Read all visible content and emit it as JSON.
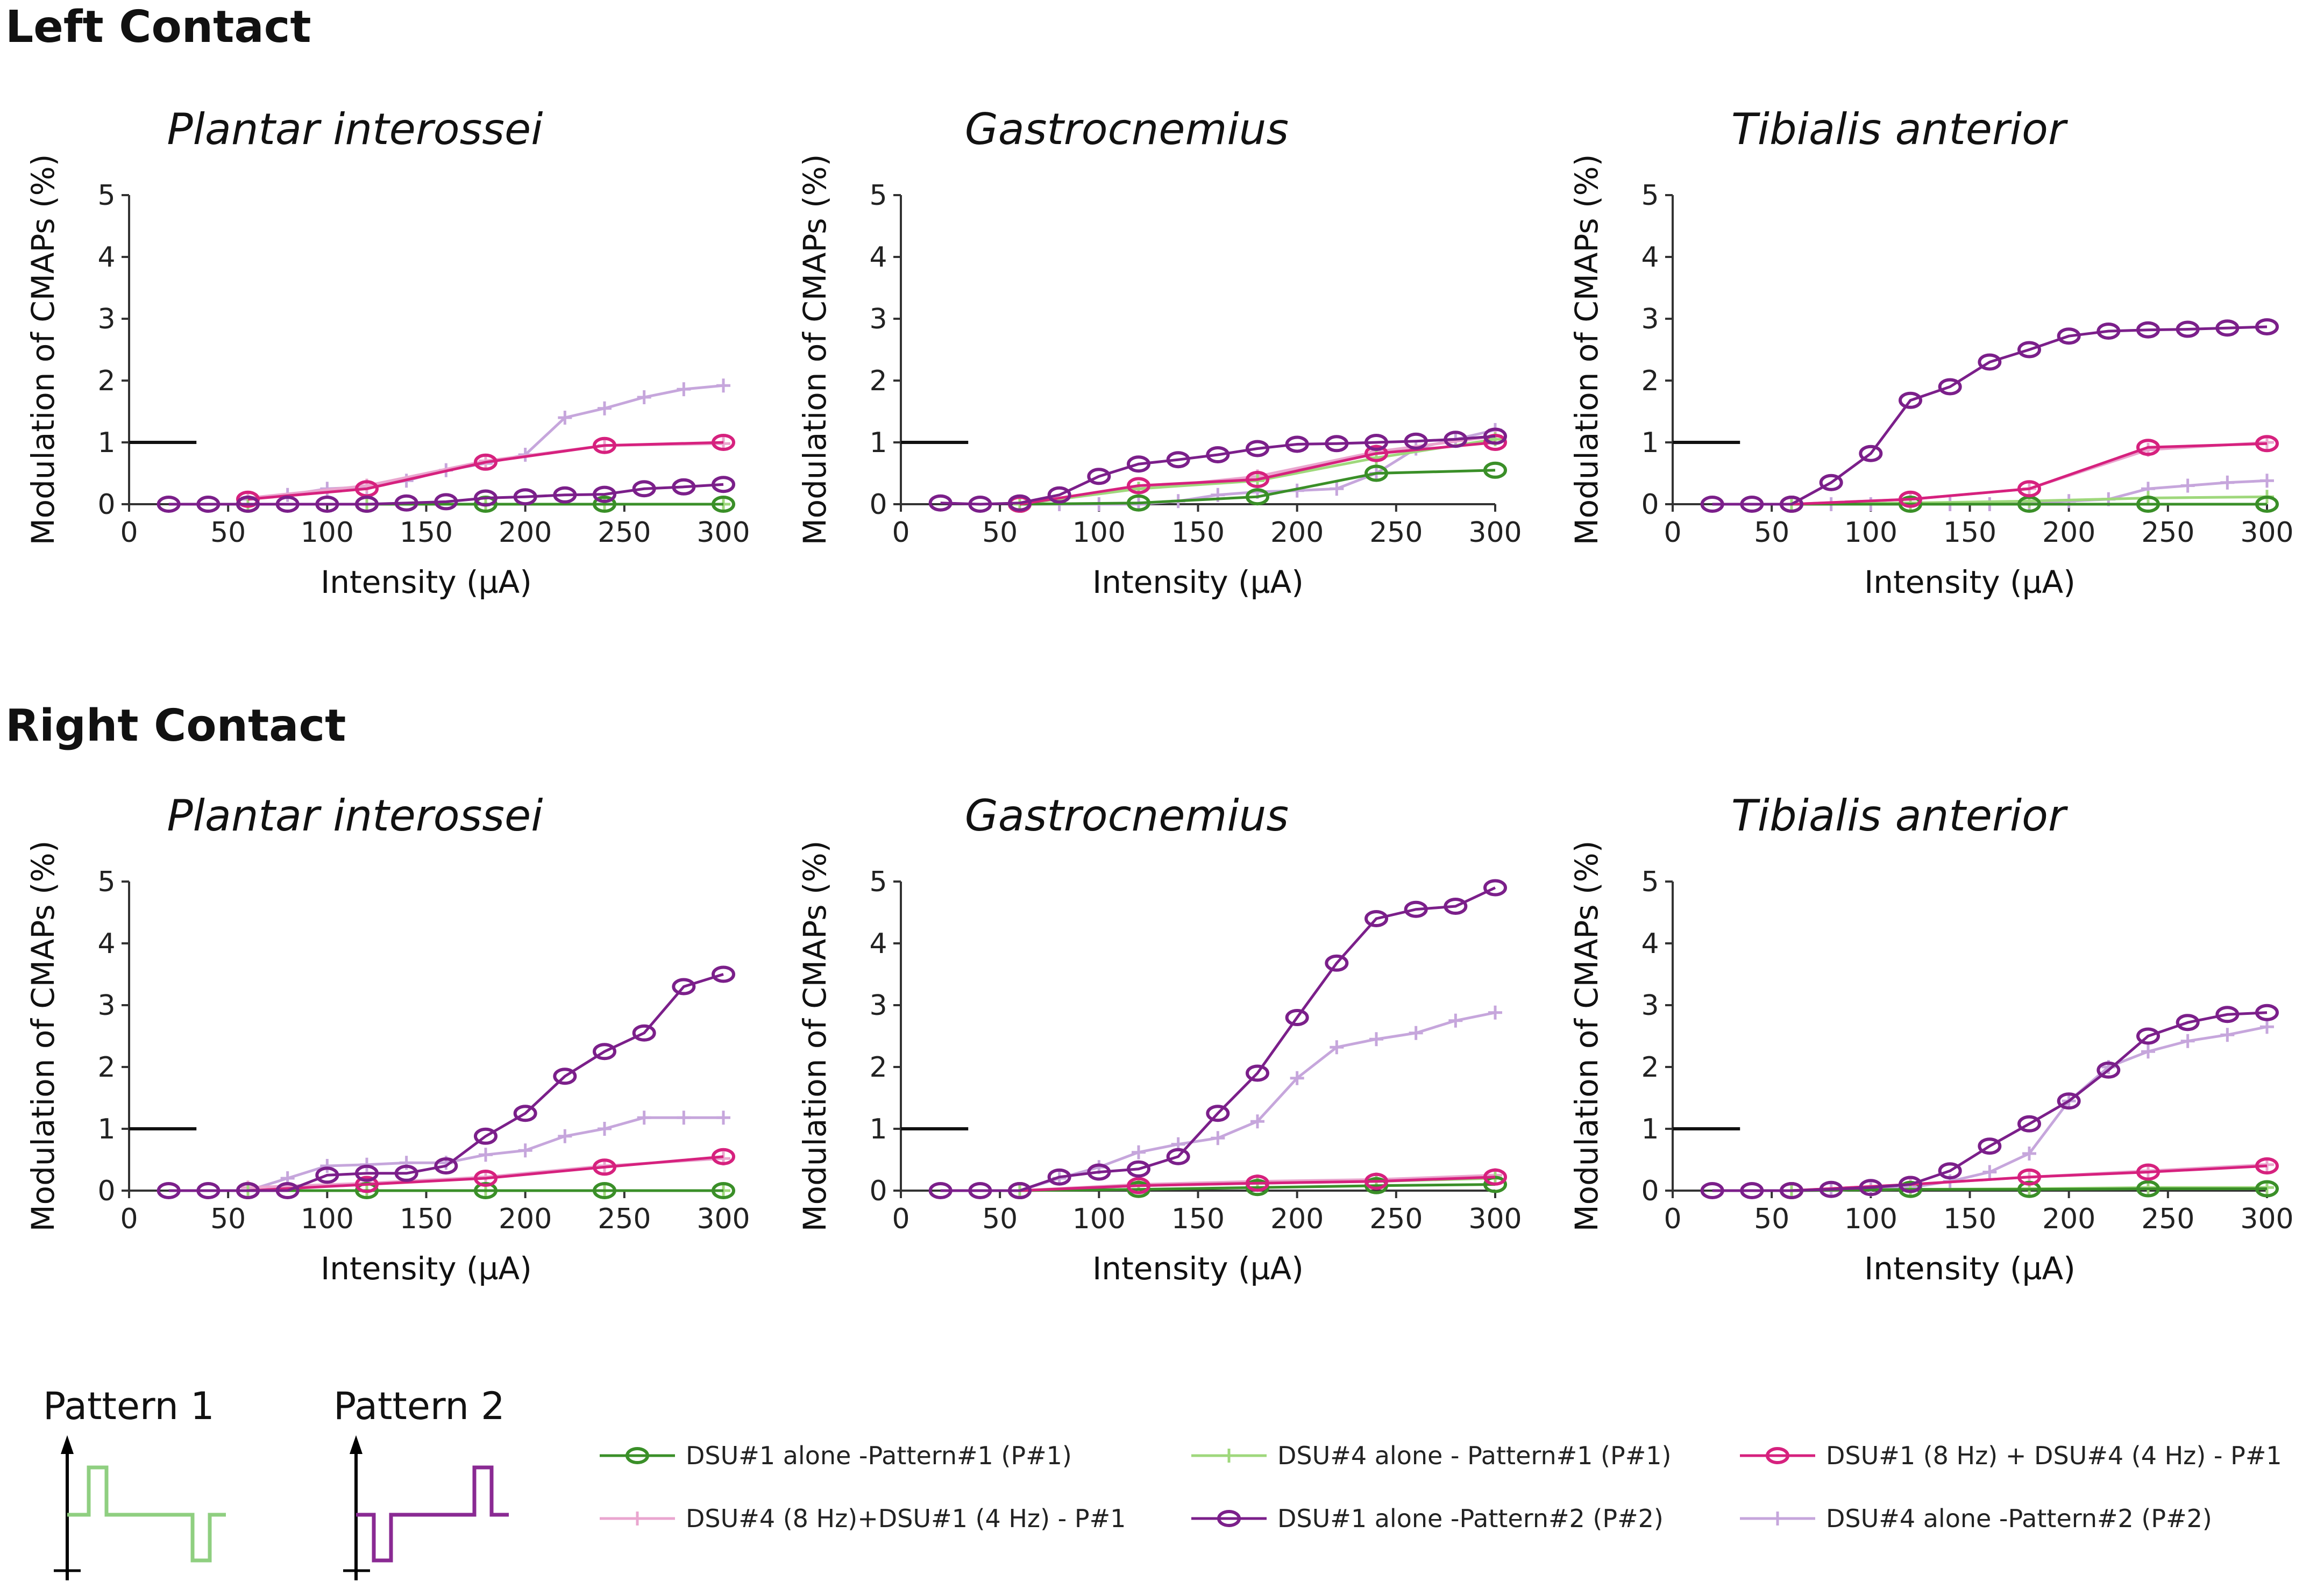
{
  "sections": [
    {
      "title": "Left Contact"
    },
    {
      "title": "Right Contact"
    }
  ],
  "series_styles": [
    {
      "name": "DSU#1 alone -Pattern#1 (P#1)",
      "color": "#3a8f28",
      "marker": "circle"
    },
    {
      "name": "DSU#4 alone - Pattern#1 (P#1)",
      "color": "#9fd87c",
      "marker": "plus"
    },
    {
      "name": "DSU#1 (8 Hz) + DSU#4 (4 Hz) - P#1",
      "color": "#d6217e",
      "marker": "circle"
    },
    {
      "name": "DSU#4 (8 Hz)+DSU#1 (4 Hz) - P#1",
      "color": "#eaa6cf",
      "marker": "plus"
    },
    {
      "name": "DSU#1 alone -Pattern#2 (P#2)",
      "color": "#7b1f8a",
      "marker": "circle"
    },
    {
      "name": "DSU#4 alone -Pattern#2 (P#2)",
      "color": "#c6a6dc",
      "marker": "plus"
    }
  ],
  "patterns": {
    "p1_label": "Pattern 1",
    "p2_label": "Pattern 2",
    "p1_color": "#8fcf80",
    "p2_color": "#8a2a93"
  },
  "chart_data": [
    {
      "type": "line",
      "section": "Left Contact",
      "title": "Plantar interossei",
      "xlabel": "Intensity (µA)",
      "ylabel": "Modulation of CMAPs (%)",
      "xlim": [
        0,
        300
      ],
      "ylim": [
        0,
        5
      ],
      "xticks": [
        0,
        50,
        100,
        150,
        200,
        250,
        300
      ],
      "yticks": [
        0,
        1,
        2,
        3,
        4,
        5
      ],
      "threshold": 1,
      "x": [
        20,
        40,
        60,
        80,
        100,
        120,
        140,
        160,
        180,
        200,
        220,
        240,
        260,
        280,
        300
      ],
      "series": [
        {
          "name": "DSU#1 alone -Pattern#1 (P#1)",
          "values": [
            null,
            null,
            0,
            null,
            null,
            0,
            null,
            null,
            0,
            null,
            null,
            0,
            null,
            null,
            0
          ]
        },
        {
          "name": "DSU#4 alone - Pattern#1 (P#1)",
          "values": [
            null,
            null,
            0,
            null,
            null,
            0,
            null,
            null,
            0,
            null,
            null,
            0,
            null,
            null,
            0
          ]
        },
        {
          "name": "DSU#1 (8 Hz) + DSU#4 (4 Hz) - P#1",
          "values": [
            null,
            null,
            0.08,
            null,
            null,
            0.25,
            null,
            null,
            0.68,
            null,
            null,
            0.95,
            null,
            null,
            1.0
          ]
        },
        {
          "name": "DSU#4 (8 Hz)+DSU#1 (4 Hz) - P#1",
          "values": [
            null,
            null,
            0.1,
            null,
            null,
            0.3,
            null,
            null,
            0.7,
            null,
            null,
            0.95,
            null,
            null,
            0.98
          ]
        },
        {
          "name": "DSU#1 alone -Pattern#2 (P#2)",
          "values": [
            0,
            0,
            0,
            0,
            0,
            0,
            0.02,
            0.04,
            0.1,
            0.12,
            0.15,
            0.16,
            0.25,
            0.28,
            0.32
          ]
        },
        {
          "name": "DSU#4 alone -Pattern#2 (P#2)",
          "values": [
            null,
            null,
            0.08,
            0.15,
            0.25,
            0.28,
            0.38,
            0.55,
            0.66,
            0.8,
            1.4,
            1.55,
            1.73,
            1.86,
            1.92
          ]
        }
      ]
    },
    {
      "type": "line",
      "section": "Left Contact",
      "title": "Gastrocnemius",
      "xlabel": "Intensity (µA)",
      "ylabel": "Modulation of CMAPs (%)",
      "xlim": [
        0,
        300
      ],
      "ylim": [
        0,
        5
      ],
      "xticks": [
        0,
        50,
        100,
        150,
        200,
        250,
        300
      ],
      "yticks": [
        0,
        1,
        2,
        3,
        4,
        5
      ],
      "threshold": 1,
      "x": [
        20,
        40,
        60,
        80,
        100,
        120,
        140,
        160,
        180,
        200,
        220,
        240,
        260,
        280,
        300
      ],
      "series": [
        {
          "name": "DSU#1 alone -Pattern#1 (P#1)",
          "values": [
            null,
            null,
            0,
            null,
            null,
            0.02,
            null,
            null,
            0.12,
            null,
            null,
            0.5,
            null,
            null,
            0.55
          ]
        },
        {
          "name": "DSU#4 alone - Pattern#1 (P#1)",
          "values": [
            null,
            null,
            0,
            null,
            null,
            0.25,
            null,
            null,
            0.38,
            null,
            null,
            0.75,
            null,
            null,
            1.05
          ]
        },
        {
          "name": "DSU#1 (8 Hz) + DSU#4 (4 Hz) - P#1",
          "values": [
            null,
            null,
            0,
            null,
            null,
            0.3,
            null,
            null,
            0.4,
            null,
            null,
            0.82,
            null,
            null,
            1.0
          ]
        },
        {
          "name": "DSU#4 (8 Hz)+DSU#1 (4 Hz) - P#1",
          "values": [
            null,
            null,
            0,
            null,
            null,
            0.25,
            null,
            null,
            0.45,
            null,
            null,
            0.85,
            null,
            null,
            1.1
          ]
        },
        {
          "name": "DSU#1 alone -Pattern#2 (P#2)",
          "values": [
            0.02,
            0,
            0.02,
            0.15,
            0.45,
            0.65,
            0.72,
            0.8,
            0.9,
            0.97,
            0.98,
            1.0,
            1.02,
            1.05,
            1.1
          ]
        },
        {
          "name": "DSU#4 alone -Pattern#2 (P#2)",
          "values": [
            null,
            null,
            0,
            0,
            0,
            0,
            0.05,
            0.15,
            0.2,
            0.22,
            0.25,
            0.5,
            0.9,
            1.05,
            1.2
          ]
        }
      ]
    },
    {
      "type": "line",
      "section": "Left Contact",
      "title": "Tibialis anterior",
      "xlabel": "Intensity (µA)",
      "ylabel": "Modulation of CMAPs (%)",
      "xlim": [
        0,
        300
      ],
      "ylim": [
        0,
        5
      ],
      "xticks": [
        0,
        50,
        100,
        150,
        200,
        250,
        300
      ],
      "yticks": [
        0,
        1,
        2,
        3,
        4,
        5
      ],
      "threshold": 1,
      "x": [
        20,
        40,
        60,
        80,
        100,
        120,
        140,
        160,
        180,
        200,
        220,
        240,
        260,
        280,
        300
      ],
      "series": [
        {
          "name": "DSU#1 alone -Pattern#1 (P#1)",
          "values": [
            null,
            null,
            0,
            null,
            null,
            0,
            null,
            null,
            0,
            null,
            null,
            0,
            null,
            null,
            0
          ]
        },
        {
          "name": "DSU#4 alone - Pattern#1 (P#1)",
          "values": [
            null,
            null,
            0,
            null,
            null,
            0.02,
            null,
            null,
            0.05,
            null,
            null,
            0.1,
            null,
            null,
            0.12
          ]
        },
        {
          "name": "DSU#1 (8 Hz) + DSU#4 (4 Hz) - P#1",
          "values": [
            null,
            null,
            0,
            null,
            null,
            0.08,
            null,
            null,
            0.25,
            null,
            null,
            0.92,
            null,
            null,
            0.98
          ]
        },
        {
          "name": "DSU#4 (8 Hz)+DSU#1 (4 Hz) - P#1",
          "values": [
            null,
            null,
            0,
            null,
            null,
            0.08,
            null,
            null,
            0.25,
            null,
            null,
            0.88,
            null,
            null,
            1.0
          ]
        },
        {
          "name": "DSU#1 alone -Pattern#2 (P#2)",
          "values": [
            0,
            0,
            0,
            0.35,
            0.82,
            1.68,
            1.9,
            2.3,
            2.5,
            2.72,
            2.8,
            2.82,
            2.83,
            2.85,
            2.87
          ]
        },
        {
          "name": "DSU#4 alone -Pattern#2 (P#2)",
          "values": [
            null,
            null,
            0,
            0,
            0,
            0,
            0,
            0,
            0.02,
            0.05,
            0.08,
            0.25,
            0.3,
            0.35,
            0.38
          ]
        }
      ]
    },
    {
      "type": "line",
      "section": "Right Contact",
      "title": "Plantar interossei",
      "xlabel": "Intensity (µA)",
      "ylabel": "Modulation of CMAPs (%)",
      "xlim": [
        0,
        300
      ],
      "ylim": [
        0,
        5
      ],
      "xticks": [
        0,
        50,
        100,
        150,
        200,
        250,
        300
      ],
      "yticks": [
        0,
        1,
        2,
        3,
        4,
        5
      ],
      "threshold": 1,
      "x": [
        20,
        40,
        60,
        80,
        100,
        120,
        140,
        160,
        180,
        200,
        220,
        240,
        260,
        280,
        300
      ],
      "series": [
        {
          "name": "DSU#1 alone -Pattern#1 (P#1)",
          "values": [
            null,
            null,
            0,
            null,
            null,
            0,
            null,
            null,
            0,
            null,
            null,
            0,
            null,
            null,
            0
          ]
        },
        {
          "name": "DSU#4 alone - Pattern#1 (P#1)",
          "values": [
            null,
            null,
            0,
            null,
            null,
            0,
            null,
            null,
            0,
            null,
            null,
            0,
            null,
            null,
            0
          ]
        },
        {
          "name": "DSU#1 (8 Hz) + DSU#4 (4 Hz) - P#1",
          "values": [
            null,
            null,
            0,
            null,
            null,
            0.1,
            null,
            null,
            0.2,
            null,
            null,
            0.38,
            null,
            null,
            0.55
          ]
        },
        {
          "name": "DSU#4 (8 Hz)+DSU#1 (4 Hz) - P#1",
          "values": [
            null,
            null,
            0.05,
            null,
            null,
            0.12,
            null,
            null,
            0.22,
            null,
            null,
            0.4,
            null,
            null,
            0.52
          ]
        },
        {
          "name": "DSU#1 alone -Pattern#2 (P#2)",
          "values": [
            0,
            0,
            0,
            0,
            0.25,
            0.28,
            0.28,
            0.4,
            0.88,
            1.25,
            1.85,
            2.25,
            2.55,
            3.3,
            3.5
          ]
        },
        {
          "name": "DSU#4 alone -Pattern#2 (P#2)",
          "values": [
            null,
            null,
            0,
            0.2,
            0.4,
            0.42,
            0.45,
            0.45,
            0.58,
            0.65,
            0.88,
            1.0,
            1.18,
            1.18,
            1.18
          ]
        }
      ]
    },
    {
      "type": "line",
      "section": "Right Contact",
      "title": "Gastrocnemius",
      "xlabel": "Intensity (µA)",
      "ylabel": "Modulation of CMAPs (%)",
      "xlim": [
        0,
        300
      ],
      "ylim": [
        0,
        5
      ],
      "xticks": [
        0,
        50,
        100,
        150,
        200,
        250,
        300
      ],
      "yticks": [
        0,
        1,
        2,
        3,
        4,
        5
      ],
      "threshold": 1,
      "x": [
        20,
        40,
        60,
        80,
        100,
        120,
        140,
        160,
        180,
        200,
        220,
        240,
        260,
        280,
        300
      ],
      "series": [
        {
          "name": "DSU#1 alone -Pattern#1 (P#1)",
          "values": [
            null,
            null,
            0,
            null,
            null,
            0.02,
            null,
            null,
            0.05,
            null,
            null,
            0.08,
            null,
            null,
            0.1
          ]
        },
        {
          "name": "DSU#4 alone - Pattern#1 (P#1)",
          "values": [
            null,
            null,
            0,
            null,
            null,
            0.08,
            null,
            null,
            0.12,
            null,
            null,
            0.15,
            null,
            null,
            0.2
          ]
        },
        {
          "name": "DSU#1 (8 Hz) + DSU#4 (4 Hz) - P#1",
          "values": [
            null,
            null,
            0,
            null,
            null,
            0.08,
            null,
            null,
            0.12,
            null,
            null,
            0.15,
            null,
            null,
            0.22
          ]
        },
        {
          "name": "DSU#4 (8 Hz)+DSU#1 (4 Hz) - P#1",
          "values": [
            null,
            null,
            0,
            null,
            null,
            0.1,
            null,
            null,
            0.15,
            null,
            null,
            0.18,
            null,
            null,
            0.25
          ]
        },
        {
          "name": "DSU#1 alone -Pattern#2 (P#2)",
          "values": [
            0,
            0,
            0,
            0.22,
            0.3,
            0.35,
            0.55,
            1.25,
            1.9,
            2.8,
            3.68,
            4.4,
            4.55,
            4.6,
            4.9
          ]
        },
        {
          "name": "DSU#4 alone -Pattern#2 (P#2)",
          "values": [
            null,
            null,
            0,
            0.2,
            0.38,
            0.62,
            0.75,
            0.85,
            1.12,
            1.82,
            2.32,
            2.45,
            2.55,
            2.75,
            2.88
          ]
        }
      ]
    },
    {
      "type": "line",
      "section": "Right Contact",
      "title": "Tibialis anterior",
      "xlabel": "Intensity (µA)",
      "ylabel": "Modulation of CMAPs (%)",
      "xlim": [
        0,
        300
      ],
      "ylim": [
        0,
        5
      ],
      "xticks": [
        0,
        50,
        100,
        150,
        200,
        250,
        300
      ],
      "yticks": [
        0,
        1,
        2,
        3,
        4,
        5
      ],
      "threshold": 1,
      "x": [
        20,
        40,
        60,
        80,
        100,
        120,
        140,
        160,
        180,
        200,
        220,
        240,
        260,
        280,
        300
      ],
      "series": [
        {
          "name": "DSU#1 alone -Pattern#1 (P#1)",
          "values": [
            null,
            null,
            0,
            null,
            null,
            0.02,
            null,
            null,
            0.02,
            null,
            null,
            0.03,
            null,
            null,
            0.03
          ]
        },
        {
          "name": "DSU#4 alone - Pattern#1 (P#1)",
          "values": [
            null,
            null,
            0,
            null,
            null,
            0.02,
            null,
            null,
            0.03,
            null,
            null,
            0.05,
            null,
            null,
            0.05
          ]
        },
        {
          "name": "DSU#1 (8 Hz) + DSU#4 (4 Hz) - P#1",
          "values": [
            null,
            null,
            0,
            null,
            null,
            0.1,
            null,
            null,
            0.22,
            null,
            null,
            0.3,
            null,
            null,
            0.4
          ]
        },
        {
          "name": "DSU#4 (8 Hz)+DSU#1 (4 Hz) - P#1",
          "values": [
            null,
            null,
            0,
            null,
            null,
            0.1,
            null,
            null,
            0.22,
            null,
            null,
            0.32,
            null,
            null,
            0.42
          ]
        },
        {
          "name": "DSU#1 alone -Pattern#2 (P#2)",
          "values": [
            0,
            0,
            0,
            0.02,
            0.05,
            0.1,
            0.32,
            0.72,
            1.08,
            1.45,
            1.95,
            2.5,
            2.72,
            2.85,
            2.88
          ]
        },
        {
          "name": "DSU#4 alone -Pattern#2 (P#2)",
          "values": [
            null,
            null,
            0,
            0,
            0.02,
            0.05,
            0.15,
            0.3,
            0.6,
            1.45,
            2.0,
            2.25,
            2.42,
            2.52,
            2.65
          ]
        }
      ]
    }
  ]
}
